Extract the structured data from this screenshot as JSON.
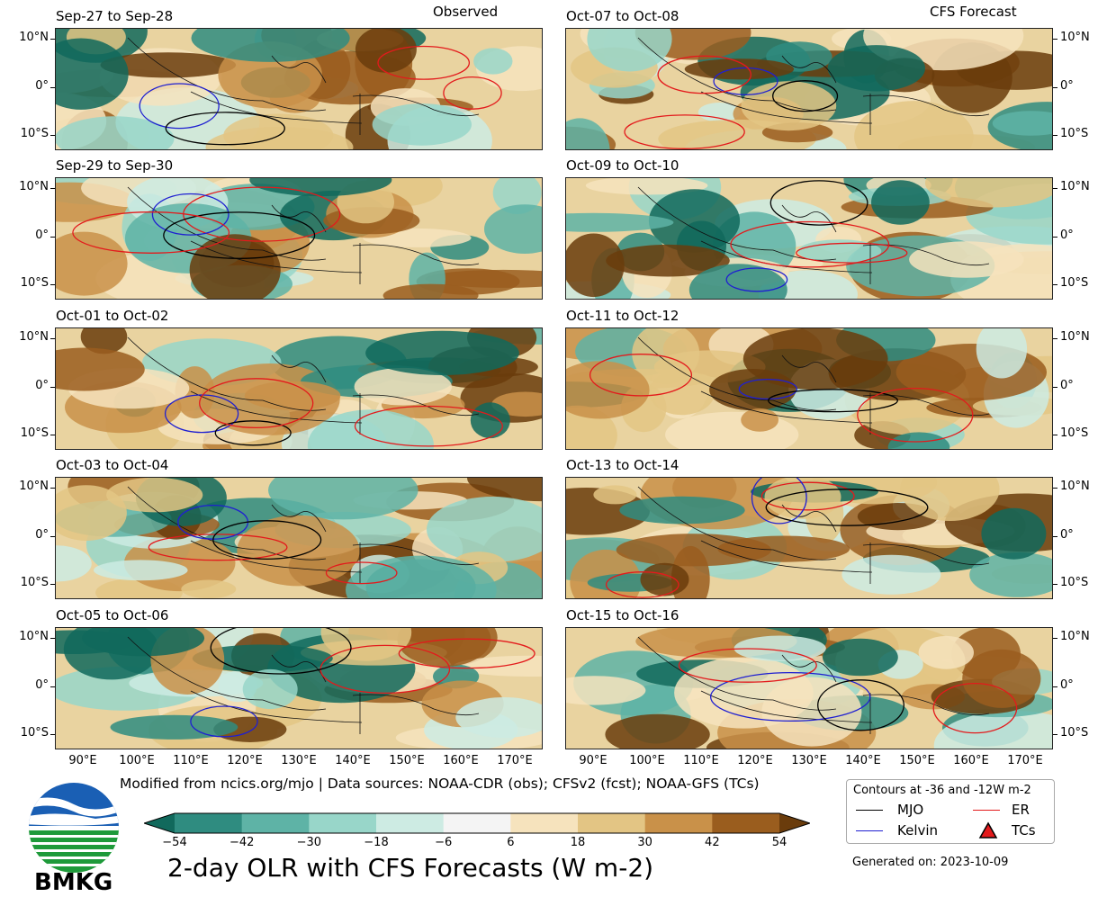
{
  "headers": {
    "observed": "Observed",
    "forecast": "CFS Forecast"
  },
  "panels": [
    {
      "title": "Sep-27 to Sep-28",
      "column": "left",
      "row": 0
    },
    {
      "title": "Sep-29 to Sep-30",
      "column": "left",
      "row": 1
    },
    {
      "title": "Oct-01 to Oct-02",
      "column": "left",
      "row": 2
    },
    {
      "title": "Oct-03 to Oct-04",
      "column": "left",
      "row": 3
    },
    {
      "title": "Oct-05 to Oct-06",
      "column": "left",
      "row": 4
    },
    {
      "title": "Oct-07 to Oct-08",
      "column": "right",
      "row": 0
    },
    {
      "title": "Oct-09 to Oct-10",
      "column": "right",
      "row": 1
    },
    {
      "title": "Oct-11 to Oct-12",
      "column": "right",
      "row": 2
    },
    {
      "title": "Oct-13 to Oct-14",
      "column": "right",
      "row": 3
    },
    {
      "title": "Oct-15 to Oct-16",
      "column": "right",
      "row": 4
    }
  ],
  "lat_ticks": [
    "10°N",
    "0°",
    "10°S"
  ],
  "lon_ticks": [
    "90°E",
    "100°E",
    "110°E",
    "120°E",
    "130°E",
    "140°E",
    "150°E",
    "160°E",
    "170°E"
  ],
  "credit": "Modified from ncics.org/mjo | Data sources: NOAA-CDR (obs); CFSv2 (fcst); NOAA-GFS (TCs)",
  "colorbar": {
    "ticks": [
      "−54",
      "−42",
      "−30",
      "−18",
      "−6",
      "6",
      "18",
      "30",
      "42",
      "54"
    ],
    "colors": [
      "#11695c",
      "#2f8c80",
      "#5eb3a6",
      "#98d6c9",
      "#cdebe3",
      "#f4f4f4",
      "#f6e3bd",
      "#e3c584",
      "#c99149",
      "#9a5d1e",
      "#6a3c0c"
    ]
  },
  "title": "2-day OLR with CFS Forecasts (W m-2)",
  "legend": {
    "heading": "Contours at -36 and -12W m-2",
    "items": [
      {
        "label": "MJO",
        "color": "#000000"
      },
      {
        "label": "ER",
        "color": "#e31a1c"
      },
      {
        "label": "Kelvin",
        "color": "#1f1fd1"
      },
      {
        "label": "TCs",
        "color": "#e31a1c"
      }
    ]
  },
  "generated": "Generated on: 2023-10-09",
  "logo": {
    "text": "BMKG"
  }
}
